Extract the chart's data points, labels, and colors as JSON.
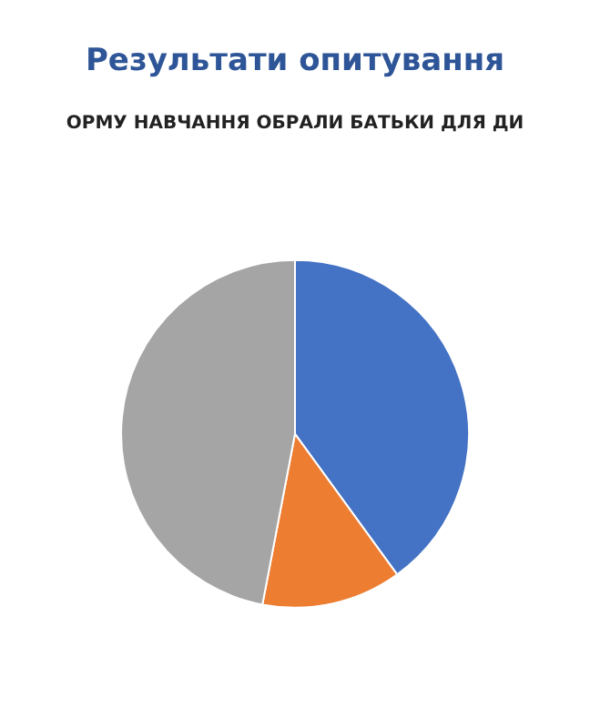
{
  "chart_data": {
    "type": "pie",
    "title": "Результати опитування",
    "subtitle": "ОРМУ НАВЧАННЯ ОБРАЛИ БАТЬКИ ДЛЯ ДИ",
    "categories": [
      null,
      null,
      null
    ],
    "values": [
      40,
      13,
      47
    ],
    "colors": [
      "#4472c4",
      "#ed7d31",
      "#a5a5a5"
    ]
  }
}
